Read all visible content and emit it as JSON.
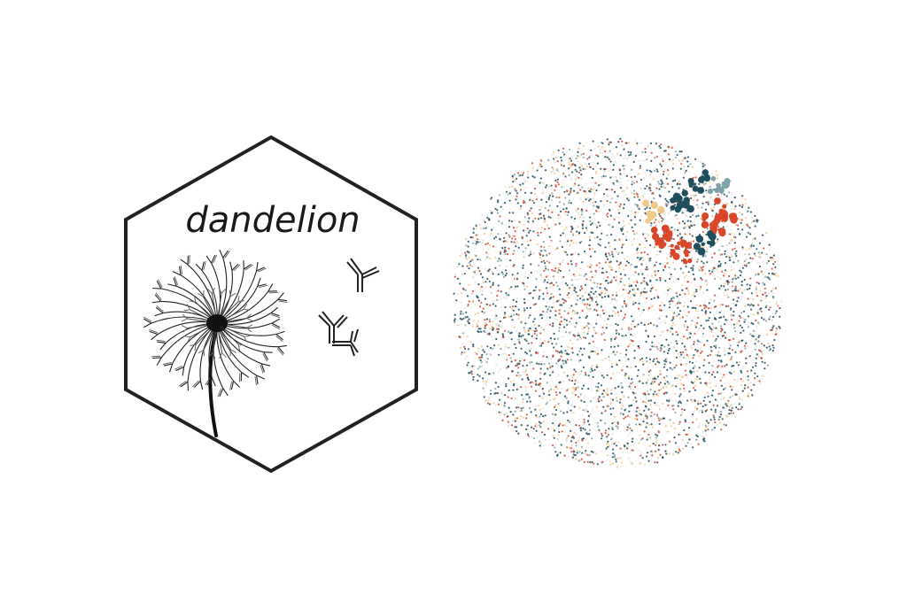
{
  "logo": {
    "wordmark": "dandelion",
    "icon": "dandelion-with-antibody-seeds-icon",
    "outline_color": "#222222"
  },
  "network_plot": {
    "palette": [
      "#1f4e5c",
      "#d9472b",
      "#f0c98c",
      "#e8e4e0",
      "#7fa3a8"
    ]
  }
}
